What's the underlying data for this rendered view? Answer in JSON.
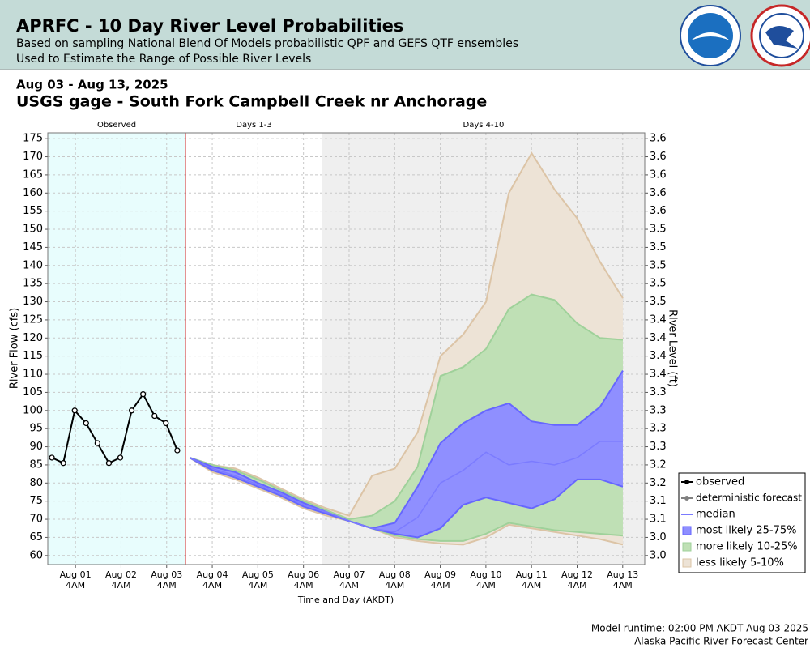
{
  "header": {
    "title": "APRFC - 10 Day River Level Probabilities",
    "subtitle": [
      "Based on sampling National Blend Of Models probabilistic QPF and GEFS QTF ensembles",
      "Used to Estimate the Range of Possible River Levels"
    ]
  },
  "chart_data": {
    "type": "band",
    "date_range": "Aug 03 - Aug 13, 2025",
    "title": "USGS gage - South Fork Campbell Creek nr Anchorage",
    "y_label": "River Flow (cfs)",
    "y2_label": "River Level (ft)",
    "x_label": "Time and Day (AKDT)",
    "xlim": [
      0.56,
      13.65
    ],
    "ylim": [
      57.5,
      176.6
    ],
    "yticks": [
      60,
      65,
      70,
      75,
      80,
      85,
      90,
      95,
      100,
      105,
      110,
      115,
      120,
      125,
      130,
      135,
      140,
      145,
      150,
      155,
      160,
      165,
      170,
      175
    ],
    "y2_tick_labels": [
      "3.0",
      "3.0",
      "3.1",
      "3.1",
      "3.2",
      "3.2",
      "3.3",
      "3.3",
      "3.3",
      "3.3",
      "3.4",
      "3.4",
      "3.4",
      "3.4",
      "3.5",
      "3.5",
      "3.5",
      "3.5",
      "3.5",
      "3.6",
      "3.6",
      "3.6",
      "3.6",
      "3.6"
    ],
    "xticks": [
      {
        "value": 1.1667,
        "label": "Aug 01",
        "time": "4AM"
      },
      {
        "value": 2.1667,
        "label": "Aug 02",
        "time": "4AM"
      },
      {
        "value": 3.1667,
        "label": "Aug 03",
        "time": "4AM"
      },
      {
        "value": 4.1667,
        "label": "Aug 04",
        "time": "4AM"
      },
      {
        "value": 5.1667,
        "label": "Aug 05",
        "time": "4AM"
      },
      {
        "value": 6.1667,
        "label": "Aug 06",
        "time": "4AM"
      },
      {
        "value": 7.1667,
        "label": "Aug 07",
        "time": "4AM"
      },
      {
        "value": 8.1667,
        "label": "Aug 08",
        "time": "4AM"
      },
      {
        "value": 9.1667,
        "label": "Aug 09",
        "time": "4AM"
      },
      {
        "value": 10.1667,
        "label": "Aug 10",
        "time": "4AM"
      },
      {
        "value": 11.1667,
        "label": "Aug 11",
        "time": "4AM"
      },
      {
        "value": 12.1667,
        "label": "Aug 12",
        "time": "4AM"
      },
      {
        "value": 13.1667,
        "label": "Aug 13",
        "time": "4AM"
      }
    ],
    "grid": true,
    "regions": [
      {
        "label": "Observed",
        "start": 0.56,
        "end": 3.58,
        "color": "#e8fdfd"
      },
      {
        "label": "Days 1-3",
        "start": 3.58,
        "end": 6.58,
        "color": "#ffffff"
      },
      {
        "label": "Days 4-10",
        "start": 6.58,
        "end": 13.65,
        "color": "#efefef"
      }
    ],
    "forecast_x": [
      3.67,
      4.17,
      4.67,
      5.17,
      5.67,
      6.17,
      6.67,
      7.17,
      7.67,
      8.17,
      8.67,
      9.17,
      9.67,
      10.17,
      10.67,
      11.17,
      11.67,
      12.17,
      12.67,
      13.17
    ],
    "observed": {
      "name": "observed",
      "color": "#000000",
      "x": [
        0.65,
        0.9,
        1.15,
        1.4,
        1.65,
        1.9,
        2.15,
        2.4,
        2.65,
        2.9,
        3.15,
        3.4
      ],
      "values": [
        87,
        85.5,
        100,
        96.5,
        91,
        85.5,
        87,
        100,
        104.5,
        98.5,
        96.5,
        89
      ]
    },
    "deterministic": {
      "name": "deterministic forecast",
      "color": "#808080"
    },
    "bands": [
      {
        "name": "less likely 5-10%",
        "color": "#ede3d6",
        "edge_color": "#dcc4a6",
        "lower": [
          87,
          83,
          81,
          78.5,
          76,
          73,
          71,
          69.5,
          67.5,
          65,
          64,
          63.3,
          63,
          65,
          68.5,
          67.5,
          66.5,
          65.5,
          64.5,
          63
        ],
        "upper": [
          87,
          85,
          84,
          81.5,
          78.5,
          75.5,
          73,
          71,
          82,
          84,
          94,
          115,
          121,
          130,
          160,
          171,
          161,
          153,
          141,
          131
        ]
      },
      {
        "name": "more likely 10-25%",
        "color": "#bfe0b5",
        "edge_color": "#9fd19a",
        "lower": [
          87,
          83.5,
          81.5,
          79,
          76.5,
          73.5,
          71.5,
          69.5,
          67.5,
          65.5,
          64.5,
          64,
          64,
          66,
          69,
          68,
          67,
          66.5,
          66,
          65.5
        ],
        "upper": [
          87,
          85,
          83.5,
          81,
          78,
          75,
          72.5,
          70,
          71,
          75,
          84.5,
          109.5,
          112,
          117,
          128,
          132,
          130.5,
          124,
          120,
          119.5
        ]
      },
      {
        "name": "most likely 25-75%",
        "color": "#8f8fff",
        "edge_color": "#6666ff",
        "lower": [
          87,
          83.5,
          81.5,
          79,
          76.5,
          73.5,
          71.5,
          69.5,
          67.5,
          66,
          65,
          67.5,
          74,
          76,
          74.5,
          73,
          75.5,
          81,
          81,
          79
        ],
        "upper": [
          87,
          84.5,
          83,
          80,
          77.5,
          74.5,
          72,
          69.5,
          67.5,
          69,
          79,
          91,
          96.5,
          100,
          102,
          97,
          96,
          96,
          101,
          111
        ]
      }
    ],
    "median": {
      "name": "median",
      "color": "#7b7bff",
      "values": [
        87,
        84,
        82,
        79.5,
        77,
        74,
        72,
        69.5,
        67.5,
        66.5,
        70.5,
        80,
        83.5,
        88.5,
        85,
        86,
        85,
        87,
        91.5,
        91.5
      ]
    },
    "forecast_start": {
      "x": 3.58,
      "color": "#cc3333"
    }
  },
  "footer": {
    "runtime": "Model runtime: 02:00 PM AKDT Aug 03 2025",
    "center": "Alaska Pacific River Forecast Center"
  }
}
